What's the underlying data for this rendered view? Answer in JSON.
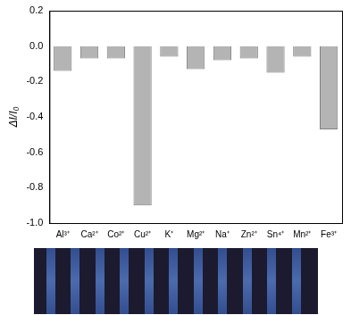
{
  "chart_data": {
    "type": "bar",
    "y_label": "ΔI/I₀",
    "categories": [
      "Al³⁺",
      "Ca²⁺",
      "Co²⁺",
      "Cu²⁺",
      "K⁺",
      "Mg²⁺",
      "Na⁺",
      "Zn²⁺",
      "Sn⁴⁺",
      "Mn²⁺",
      "Fe³⁺"
    ],
    "values": [
      -0.14,
      -0.07,
      -0.07,
      -0.9,
      -0.06,
      -0.13,
      -0.08,
      -0.07,
      -0.15,
      -0.06,
      -0.47
    ],
    "color": "#b4b4b4",
    "ylim": [
      -1.0,
      0.2
    ],
    "yticks": [
      {
        "value": -1.0,
        "label": "-1.0"
      },
      -0.8,
      -0.6,
      -0.4,
      -0.2,
      {
        "value": 0.0,
        "label": "0.0"
      },
      0.2
    ],
    "grid": false
  }
}
